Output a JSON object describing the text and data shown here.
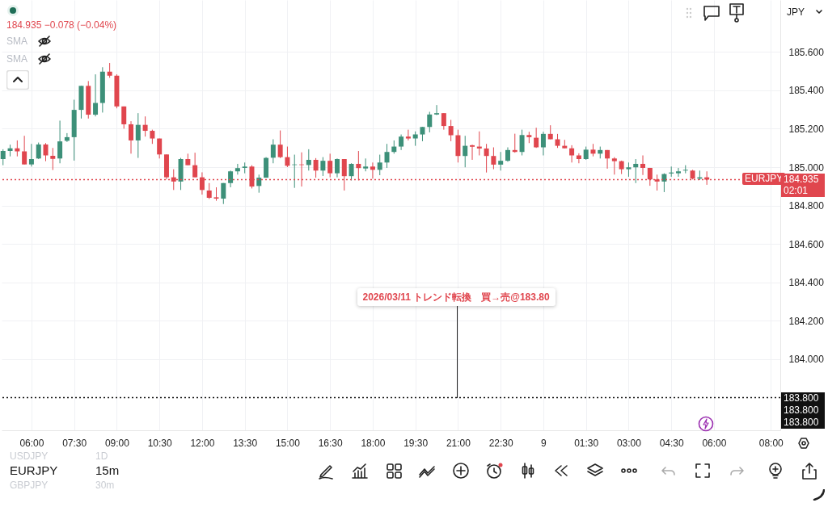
{
  "chart_data": {
    "type": "candlestick",
    "x": [
      "2026-03-08T05:00",
      "2026-03-08T05:15",
      "2026-03-08T05:30",
      "2026-03-08T05:45",
      "2026-03-08T06:00",
      "2026-03-08T06:15",
      "2026-03-08T06:30",
      "2026-03-08T06:45",
      "2026-03-08T07:00",
      "2026-03-08T07:15",
      "2026-03-08T07:30",
      "2026-03-08T07:45",
      "2026-03-08T08:00",
      "2026-03-08T08:15",
      "2026-03-08T08:30",
      "2026-03-08T08:45",
      "2026-03-08T09:00",
      "2026-03-08T09:15",
      "2026-03-08T09:30",
      "2026-03-08T09:45",
      "2026-03-08T10:00",
      "2026-03-08T10:15",
      "2026-03-08T10:30",
      "2026-03-08T10:45",
      "2026-03-08T11:00",
      "2026-03-08T11:15",
      "2026-03-08T11:30",
      "2026-03-08T11:45",
      "2026-03-08T12:00",
      "2026-03-08T12:15",
      "2026-03-08T12:30",
      "2026-03-08T12:45",
      "2026-03-08T13:00",
      "2026-03-08T13:15",
      "2026-03-08T13:30",
      "2026-03-08T13:45",
      "2026-03-08T14:00",
      "2026-03-08T14:15",
      "2026-03-08T14:30",
      "2026-03-08T14:45",
      "2026-03-08T15:00",
      "2026-03-08T15:15",
      "2026-03-08T15:30",
      "2026-03-08T15:45",
      "2026-03-08T16:00",
      "2026-03-08T16:15",
      "2026-03-08T16:30",
      "2026-03-08T16:45",
      "2026-03-08T17:00",
      "2026-03-08T17:15",
      "2026-03-08T17:30",
      "2026-03-08T17:45",
      "2026-03-08T18:00",
      "2026-03-08T18:15",
      "2026-03-08T18:30",
      "2026-03-08T18:45",
      "2026-03-08T19:00",
      "2026-03-08T19:15",
      "2026-03-08T19:30",
      "2026-03-08T19:45",
      "2026-03-08T20:00",
      "2026-03-08T20:15",
      "2026-03-08T20:30",
      "2026-03-08T20:45",
      "2026-03-08T21:00",
      "2026-03-08T21:15",
      "2026-03-08T21:30",
      "2026-03-08T21:45",
      "2026-03-08T22:00",
      "2026-03-08T22:15",
      "2026-03-08T22:30",
      "2026-03-08T22:45",
      "2026-03-08T23:00",
      "2026-03-08T23:15",
      "2026-03-08T23:30",
      "2026-03-08T23:45",
      "2026-03-09T00:00",
      "2026-03-09T00:15",
      "2026-03-09T00:30",
      "2026-03-09T00:45",
      "2026-03-09T01:00",
      "2026-03-09T01:15",
      "2026-03-09T01:30",
      "2026-03-09T01:45",
      "2026-03-09T02:00",
      "2026-03-09T02:15",
      "2026-03-09T02:30",
      "2026-03-09T02:45",
      "2026-03-09T03:00",
      "2026-03-09T03:15",
      "2026-03-09T03:30",
      "2026-03-09T03:45",
      "2026-03-09T04:00",
      "2026-03-09T04:15",
      "2026-03-09T04:30",
      "2026-03-09T04:45",
      "2026-03-09T05:00",
      "2026-03-09T05:15",
      "2026-03-09T05:30",
      "2026-03-09T05:45"
    ],
    "ohlc": [
      [
        185.042,
        185.093,
        185.01,
        185.084
      ],
      [
        185.084,
        185.117,
        185.056,
        185.098
      ],
      [
        185.098,
        185.139,
        185.056,
        185.082
      ],
      [
        185.082,
        185.163,
        185.014,
        185.014
      ],
      [
        185.014,
        185.121,
        185.003,
        185.042
      ],
      [
        185.045,
        185.128,
        185.042,
        185.118
      ],
      [
        185.118,
        185.125,
        185.031,
        185.061
      ],
      [
        185.059,
        185.1,
        184.985,
        185.043
      ],
      [
        185.045,
        185.242,
        185.02,
        185.134
      ],
      [
        185.137,
        185.177,
        185.131,
        185.156
      ],
      [
        185.156,
        185.351,
        185.034,
        185.298
      ],
      [
        185.298,
        185.423,
        185.253,
        185.423
      ],
      [
        185.423,
        185.448,
        185.253,
        185.273
      ],
      [
        185.273,
        185.483,
        185.264,
        185.334
      ],
      [
        185.334,
        185.52,
        185.284,
        185.497
      ],
      [
        185.497,
        185.542,
        185.465,
        185.476
      ],
      [
        185.476,
        185.483,
        185.306,
        185.316
      ],
      [
        185.316,
        185.316,
        185.2,
        185.223
      ],
      [
        185.223,
        185.239,
        185.07,
        185.139
      ],
      [
        185.139,
        185.281,
        185.048,
        185.22
      ],
      [
        185.22,
        185.264,
        185.159,
        185.189
      ],
      [
        185.189,
        185.195,
        185.121,
        185.149
      ],
      [
        185.149,
        185.149,
        185.045,
        185.066
      ],
      [
        185.066,
        185.066,
        184.936,
        184.947
      ],
      [
        184.947,
        184.989,
        184.881,
        184.925
      ],
      [
        184.925,
        185.048,
        184.881,
        185.042
      ],
      [
        185.042,
        185.07,
        185.01,
        185.01
      ],
      [
        185.01,
        185.075,
        184.947,
        184.947
      ],
      [
        184.947,
        184.973,
        184.857,
        184.881
      ],
      [
        184.878,
        184.917,
        184.834,
        184.84
      ],
      [
        184.843,
        184.895,
        184.825,
        184.836
      ],
      [
        184.836,
        184.917,
        184.808,
        184.917
      ],
      [
        184.917,
        184.982,
        184.895,
        184.978
      ],
      [
        184.978,
        185.017,
        184.961,
        184.995
      ],
      [
        184.996,
        185.024,
        184.968,
        185.003
      ],
      [
        185.003,
        185.01,
        184.889,
        184.899
      ],
      [
        184.902,
        184.961,
        184.867,
        184.945
      ],
      [
        184.945,
        185.052,
        184.945,
        185.048
      ],
      [
        185.049,
        185.145,
        185.02,
        185.117
      ],
      [
        185.117,
        185.191,
        185.047,
        185.052
      ],
      [
        185.052,
        185.107,
        185.0,
        185.007
      ],
      [
        185.011,
        185.065,
        184.892,
        185.014
      ],
      [
        185.014,
        185.077,
        184.899,
        185.011
      ],
      [
        185.011,
        185.093,
        184.982,
        185.038
      ],
      [
        185.038,
        185.047,
        184.945,
        184.982
      ],
      [
        184.982,
        185.052,
        184.954,
        185.033
      ],
      [
        185.033,
        185.07,
        184.947,
        184.968
      ],
      [
        184.968,
        185.045,
        184.947,
        185.042
      ],
      [
        185.042,
        185.042,
        184.878,
        184.953
      ],
      [
        184.953,
        185.02,
        184.931,
        185.017
      ],
      [
        185.017,
        185.084,
        184.931,
        184.995
      ],
      [
        184.993,
        185.045,
        184.978,
        185.003
      ],
      [
        185.003,
        185.024,
        184.94,
        184.986
      ],
      [
        184.986,
        185.065,
        184.958,
        185.024
      ],
      [
        185.024,
        185.121,
        184.996,
        185.079
      ],
      [
        185.079,
        185.139,
        185.07,
        185.107
      ],
      [
        185.107,
        185.17,
        185.089,
        185.159
      ],
      [
        185.159,
        185.195,
        185.139,
        185.149
      ],
      [
        185.149,
        185.186,
        185.111,
        185.17
      ],
      [
        185.17,
        185.209,
        185.135,
        185.209
      ],
      [
        185.209,
        185.288,
        185.181,
        185.274
      ],
      [
        185.274,
        185.323,
        185.271,
        185.281
      ],
      [
        185.281,
        185.281,
        185.195,
        185.214
      ],
      [
        185.214,
        185.246,
        185.135,
        185.166
      ],
      [
        185.166,
        185.195,
        185.024,
        185.058
      ],
      [
        185.058,
        185.163,
        184.999,
        185.111
      ],
      [
        185.114,
        185.117,
        185.038,
        185.106
      ],
      [
        185.107,
        185.186,
        185.061,
        185.097
      ],
      [
        185.097,
        185.121,
        184.972,
        185.058
      ],
      [
        185.058,
        185.103,
        184.989,
        185.013
      ],
      [
        185.013,
        185.079,
        184.982,
        185.033
      ],
      [
        185.033,
        185.103,
        185.028,
        185.089
      ],
      [
        185.089,
        185.174,
        185.075,
        185.079
      ],
      [
        185.079,
        185.195,
        185.061,
        185.167
      ],
      [
        185.167,
        185.184,
        185.125,
        185.156
      ],
      [
        185.153,
        185.205,
        185.1,
        185.103
      ],
      [
        185.103,
        185.184,
        185.061,
        185.173
      ],
      [
        185.173,
        185.218,
        185.145,
        185.145
      ],
      [
        185.145,
        185.173,
        185.1,
        185.111
      ],
      [
        185.111,
        185.142,
        185.098,
        185.098
      ],
      [
        185.098,
        185.114,
        185.024,
        185.061
      ],
      [
        185.061,
        185.072,
        185.02,
        185.042
      ],
      [
        185.042,
        185.107,
        185.038,
        185.091
      ],
      [
        185.091,
        185.121,
        185.056,
        185.07
      ],
      [
        185.07,
        185.107,
        185.045,
        185.089
      ],
      [
        185.089,
        185.089,
        184.992,
        185.045
      ],
      [
        185.045,
        185.052,
        184.961,
        185.031
      ],
      [
        185.031,
        185.034,
        184.964,
        184.989
      ],
      [
        184.989,
        185.024,
        184.95,
        184.999
      ],
      [
        184.999,
        185.042,
        184.917,
        185.017
      ],
      [
        185.017,
        185.061,
        184.959,
        184.996
      ],
      [
        184.996,
        184.996,
        184.903,
        184.936
      ],
      [
        184.936,
        184.961,
        184.878,
        184.925
      ],
      [
        184.925,
        184.968,
        184.87,
        184.964
      ],
      [
        184.967,
        185.003,
        184.95,
        184.972
      ],
      [
        184.968,
        184.996,
        184.95,
        184.978
      ],
      [
        184.982,
        185.01,
        184.968,
        184.986
      ],
      [
        184.982,
        184.986,
        184.936,
        184.94
      ],
      [
        184.94,
        184.982,
        184.933,
        184.947
      ],
      [
        184.947,
        184.978,
        184.908,
        184.935
      ]
    ],
    "colors": [
      "#3d9079",
      "#3d9079",
      "#e0464e",
      "#e0464e",
      "#3d9079",
      "#3d9079",
      "#e0464e",
      "#e0464e",
      "#3d9079",
      "#3d9079",
      "#3d9079",
      "#3d9079",
      "#e0464e",
      "#3d9079",
      "#3d9079",
      "#e0464e",
      "#e0464e",
      "#e0464e",
      "#e0464e",
      "#3d9079",
      "#e0464e",
      "#e0464e",
      "#e0464e",
      "#e0464e",
      "#e0464e",
      "#3d9079",
      "#e0464e",
      "#e0464e",
      "#e0464e",
      "#e0464e",
      "#e0464e",
      "#3d9079",
      "#3d9079",
      "#3d9079",
      "#3d9079",
      "#e0464e",
      "#3d9079",
      "#3d9079",
      "#3d9079",
      "#e0464e",
      "#e0464e",
      "#3d9079",
      "#e0464e",
      "#3d9079",
      "#e0464e",
      "#3d9079",
      "#e0464e",
      "#3d9079",
      "#e0464e",
      "#3d9079",
      "#e0464e",
      "#3d9079",
      "#e0464e",
      "#3d9079",
      "#3d9079",
      "#3d9079",
      "#3d9079",
      "#e0464e",
      "#3d9079",
      "#3d9079",
      "#3d9079",
      "#3d9079",
      "#e0464e",
      "#e0464e",
      "#e0464e",
      "#3d9079",
      "#e0464e",
      "#e0464e",
      "#e0464e",
      "#e0464e",
      "#3d9079",
      "#3d9079",
      "#e0464e",
      "#3d9079",
      "#e0464e",
      "#e0464e",
      "#3d9079",
      "#e0464e",
      "#e0464e",
      "#e0464e",
      "#e0464e",
      "#e0464e",
      "#3d9079",
      "#e0464e",
      "#3d9079",
      "#e0464e",
      "#e0464e",
      "#e0464e",
      "#3d9079",
      "#3d9079",
      "#e0464e",
      "#e0464e",
      "#e0464e",
      "#3d9079",
      "#3d9079",
      "#3d9079",
      "#3d9079",
      "#e0464e",
      "#3d9079",
      "#e0464e"
    ],
    "xlim": [
      "2026-03-08T04:57",
      "2026-03-09T08:20"
    ],
    "xticks": [
      {
        "value": "2026-03-08T06:00",
        "label": "06:00"
      },
      {
        "value": "2026-03-08T07:30",
        "label": "07:30"
      },
      {
        "value": "2026-03-08T09:00",
        "label": "09:00"
      },
      {
        "value": "2026-03-08T10:30",
        "label": "10:30"
      },
      {
        "value": "2026-03-08T12:00",
        "label": "12:00"
      },
      {
        "value": "2026-03-08T13:30",
        "label": "13:30"
      },
      {
        "value": "2026-03-08T15:00",
        "label": "15:00"
      },
      {
        "value": "2026-03-08T16:30",
        "label": "16:30"
      },
      {
        "value": "2026-03-08T18:00",
        "label": "18:00"
      },
      {
        "value": "2026-03-08T19:30",
        "label": "19:30"
      },
      {
        "value": "2026-03-08T21:00",
        "label": "21:00"
      },
      {
        "value": "2026-03-08T22:30",
        "label": "22:30"
      },
      {
        "value": "2026-03-09T00:00",
        "label": "9"
      },
      {
        "value": "2026-03-09T01:30",
        "label": "01:30"
      },
      {
        "value": "2026-03-09T03:00",
        "label": "03:00"
      },
      {
        "value": "2026-03-09T04:30",
        "label": "04:30"
      },
      {
        "value": "2026-03-09T06:00",
        "label": "06:00"
      },
      {
        "value": "2026-03-09T08:00",
        "label": "08:00"
      }
    ],
    "ylim": [
      183.63,
      185.87
    ],
    "yticks": [
      {
        "value": 184,
        "label": "184.000"
      },
      {
        "value": 184.2,
        "label": "184.200"
      },
      {
        "value": 184.4,
        "label": "184.400"
      },
      {
        "value": 184.6,
        "label": "184.600"
      },
      {
        "value": 184.8,
        "label": "184.800"
      },
      {
        "value": 185,
        "label": "185.000"
      },
      {
        "value": 185.2,
        "label": "185.200"
      },
      {
        "value": 185.4,
        "label": "185.400"
      },
      {
        "value": 185.6,
        "label": "185.600"
      }
    ],
    "grid": true,
    "ref_lines": [
      {
        "axis": "y",
        "value": 184.935,
        "label": "EURJPY",
        "color": "#e0464e",
        "line_style": "dotted"
      },
      {
        "axis": "y",
        "value": 183.8,
        "label": null,
        "color": "#111111",
        "line_style": "dotted"
      }
    ],
    "annotations": [
      "184.935 −0.078 (−0.04%)",
      "SMA",
      "SMA",
      "JPY",
      "184.935",
      "02:01",
      "183.800",
      "183.800",
      "183.800",
      "USDJPY",
      "1D",
      "EURJPY",
      "15m",
      "GBPJPY",
      "30m",
      "2026/03/11 トレンド転換　買→売@183.80"
    ]
  }
}
